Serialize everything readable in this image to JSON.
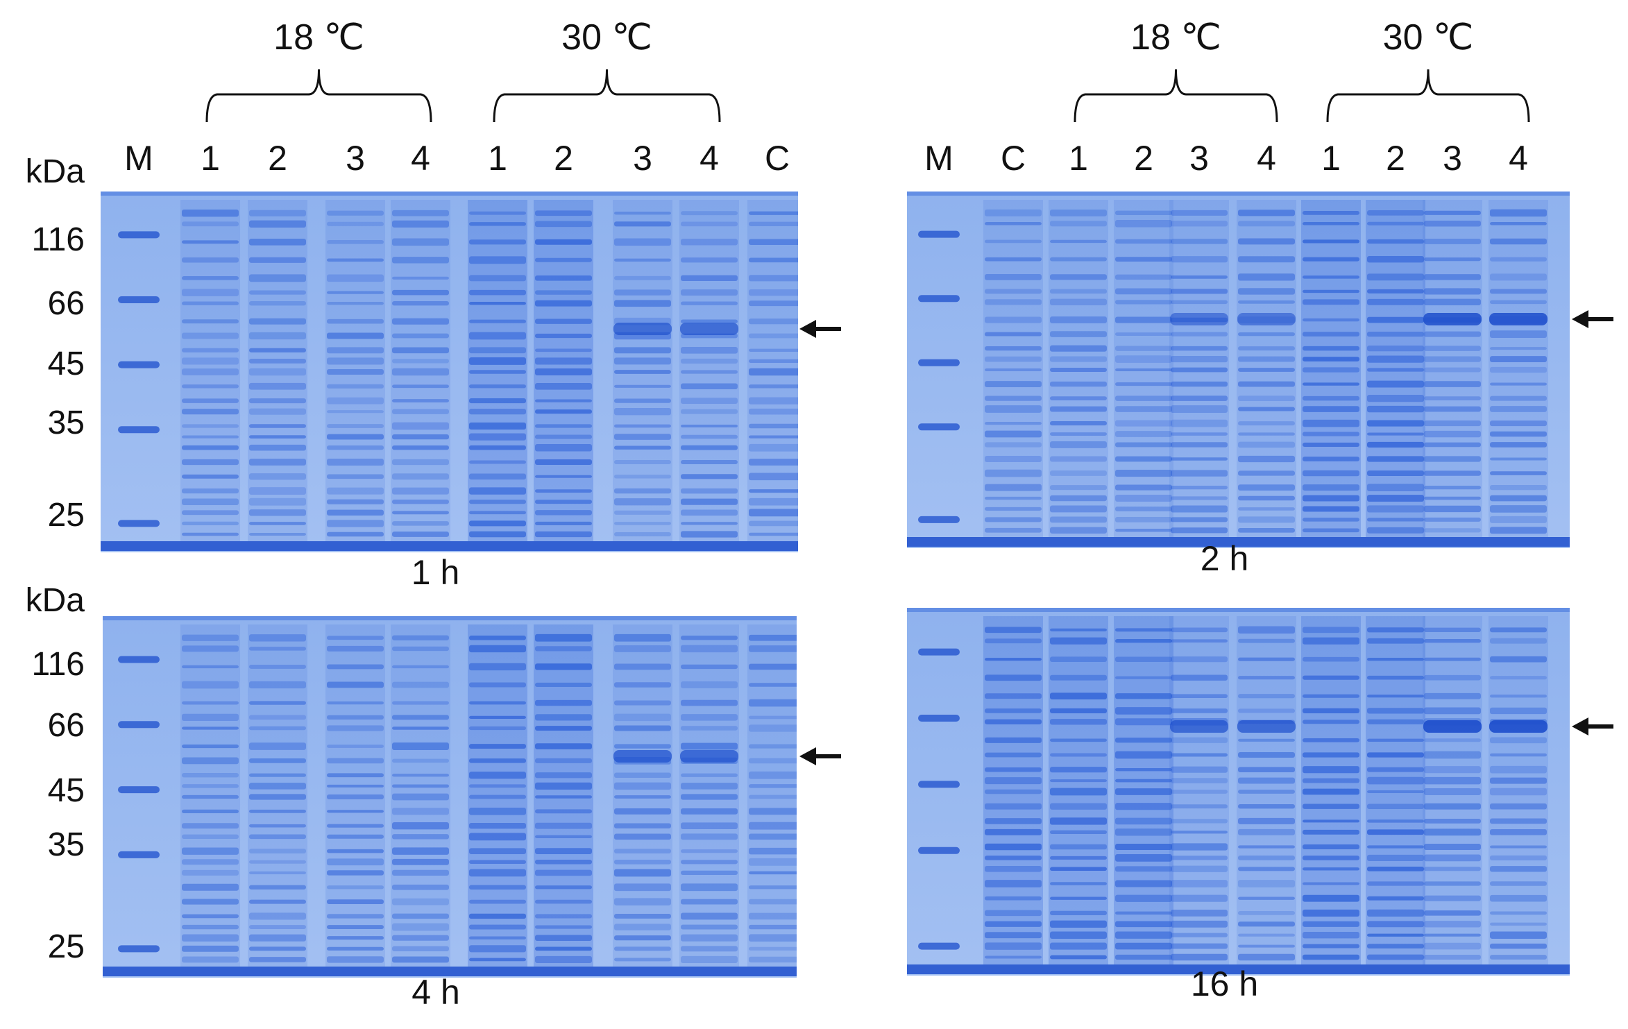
{
  "panels": [
    {
      "id": "p1h",
      "time": "1 h",
      "show_kda": true,
      "kda_unit": "kDa",
      "markers": [
        "116",
        "66",
        "45",
        "35",
        "25"
      ],
      "groups": [
        {
          "label": "18 ℃",
          "from": 1,
          "to": 4
        },
        {
          "label": "30 ℃",
          "from": 5,
          "to": 8
        }
      ],
      "lanes": [
        "M",
        "1",
        "2",
        "3",
        "4",
        "1",
        "2",
        "3",
        "4",
        "C"
      ],
      "arrow": true,
      "target_lanes": [
        7,
        8
      ],
      "target_strength": [
        0.55,
        0.55
      ],
      "dense_lanes": [
        5,
        6
      ]
    },
    {
      "id": "p2h",
      "time": "2 h",
      "show_kda": false,
      "kda_unit": "",
      "markers": [],
      "groups": [
        {
          "label": "18 ℃",
          "from": 2,
          "to": 5
        },
        {
          "label": "30 ℃",
          "from": 6,
          "to": 9
        }
      ],
      "lanes": [
        "M",
        "C",
        "1",
        "2",
        "3",
        "4",
        "1",
        "2",
        "3",
        "4"
      ],
      "arrow": true,
      "target_lanes": [
        4,
        5,
        8,
        9
      ],
      "target_strength": [
        0.35,
        0.35,
        0.85,
        0.85
      ],
      "dense_lanes": [
        6,
        7
      ]
    },
    {
      "id": "p4h",
      "time": "4 h",
      "show_kda": true,
      "kda_unit": "kDa",
      "markers": [
        "116",
        "66",
        "45",
        "35",
        "25"
      ],
      "groups": [],
      "lanes": [],
      "arrow": true,
      "target_lanes": [
        7,
        8
      ],
      "target_strength": [
        0.6,
        0.6
      ],
      "dense_lanes": [
        5,
        6
      ]
    },
    {
      "id": "p16h",
      "time": "16 h",
      "show_kda": false,
      "kda_unit": "",
      "markers": [],
      "groups": [],
      "lanes": [],
      "arrow": true,
      "target_lanes": [
        4,
        5,
        8,
        9
      ],
      "target_strength": [
        0.6,
        0.6,
        0.95,
        0.95
      ],
      "dense_lanes": [
        1,
        2,
        3,
        6,
        7
      ]
    }
  ],
  "colors": {
    "gel": "#9ab9f0",
    "band": "#2f62d8",
    "band_dark": "#1e4fcc",
    "text": "#111111"
  }
}
